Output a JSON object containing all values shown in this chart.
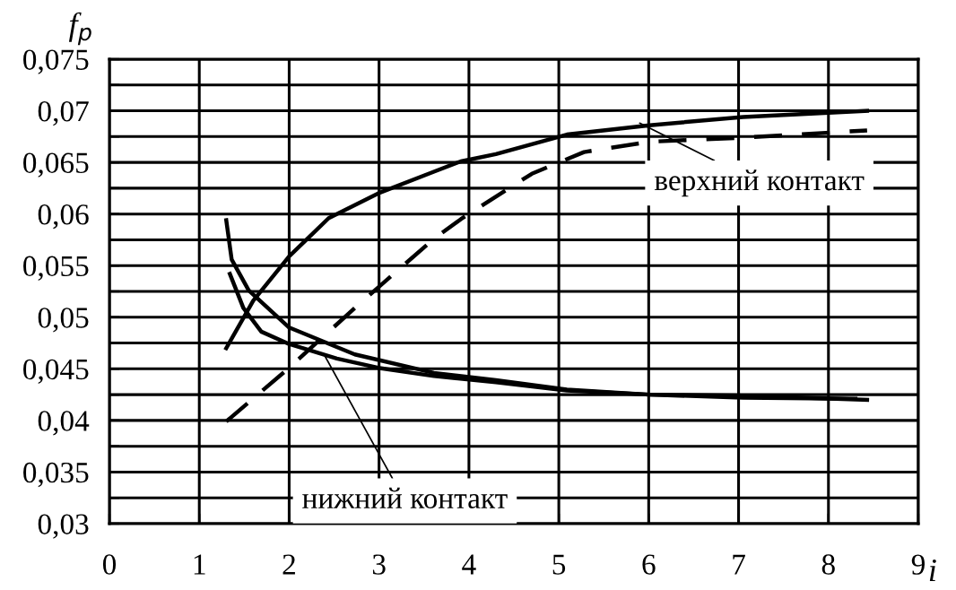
{
  "chart_data": {
    "type": "line",
    "ylabel": "f$_{p}$",
    "xlabel": "i",
    "xlim": [
      0,
      9
    ],
    "xticks": [
      0,
      1,
      2,
      3,
      4,
      5,
      6,
      7,
      8,
      9
    ],
    "ylim": [
      0.03,
      0.075
    ],
    "yticks": [
      {
        "value": 0.03,
        "label": "0,03"
      },
      {
        "value": 0.0325,
        "label": null
      },
      {
        "value": 0.035,
        "label": "0,035"
      },
      {
        "value": 0.0375,
        "label": null
      },
      {
        "value": 0.04,
        "label": "0,04"
      },
      {
        "value": 0.0425,
        "label": null
      },
      {
        "value": 0.045,
        "label": "0,045"
      },
      {
        "value": 0.0475,
        "label": null
      },
      {
        "value": 0.05,
        "label": "0,05"
      },
      {
        "value": 0.0525,
        "label": null
      },
      {
        "value": 0.055,
        "label": "0,055"
      },
      {
        "value": 0.0575,
        "label": null
      },
      {
        "value": 0.06,
        "label": "0,06"
      },
      {
        "value": 0.0625,
        "label": null
      },
      {
        "value": 0.065,
        "label": "0,065"
      },
      {
        "value": 0.0675,
        "label": null
      },
      {
        "value": 0.07,
        "label": "0,07"
      },
      {
        "value": 0.0725,
        "label": null
      },
      {
        "value": 0.075,
        "label": "0,075"
      }
    ],
    "grid": true,
    "marker": "none",
    "series": [
      {
        "color": "#000000",
        "line_style": "solid",
        "x": [
          1.3,
          1.6,
          2.0,
          2.44,
          2.99,
          3.61,
          3.91,
          4.3,
          5.09,
          6.01,
          7.05,
          8.43
        ],
        "values": [
          0.047,
          0.0516,
          0.0559,
          0.0596,
          0.062,
          0.0641,
          0.0651,
          0.0658,
          0.0677,
          0.0686,
          0.0694,
          0.07
        ]
      },
      {
        "color": "#000000",
        "line_style": "dashed",
        "x": [
          1.3,
          2.0,
          2.73,
          3.61,
          3.91,
          4.7,
          5.28,
          6.01,
          7.05,
          8.43
        ],
        "values": [
          0.0399,
          0.0451,
          0.0509,
          0.0576,
          0.0595,
          0.0639,
          0.066,
          0.067,
          0.0674,
          0.0681
        ]
      },
      {
        "color": "#000000",
        "line_style": "solid",
        "x": [
          1.3,
          1.36,
          1.55,
          2.0,
          2.73,
          3.61,
          4.3,
          5.09,
          6.01,
          7.05,
          8.43
        ],
        "values": [
          0.0594,
          0.0556,
          0.0526,
          0.049,
          0.0464,
          0.0446,
          0.0439,
          0.043,
          0.0425,
          0.0424,
          0.042
        ]
      },
      {
        "color": "#000000",
        "line_style": "solid",
        "x": [
          1.34,
          1.49,
          1.69,
          2.0,
          2.53,
          2.99,
          3.61,
          4.3,
          5.09,
          6.01,
          7.05,
          8.3
        ],
        "values": [
          0.0542,
          0.0509,
          0.0486,
          0.0474,
          0.046,
          0.0451,
          0.0443,
          0.0437,
          0.0429,
          0.0425,
          0.0422,
          0.0421
        ]
      }
    ],
    "annotations": [
      {
        "text": "нижний контакт",
        "x": 2.4,
        "y": 0.0462
      },
      {
        "text": "верхний контакт",
        "x": 5.9,
        "y": 0.0688
      }
    ]
  }
}
